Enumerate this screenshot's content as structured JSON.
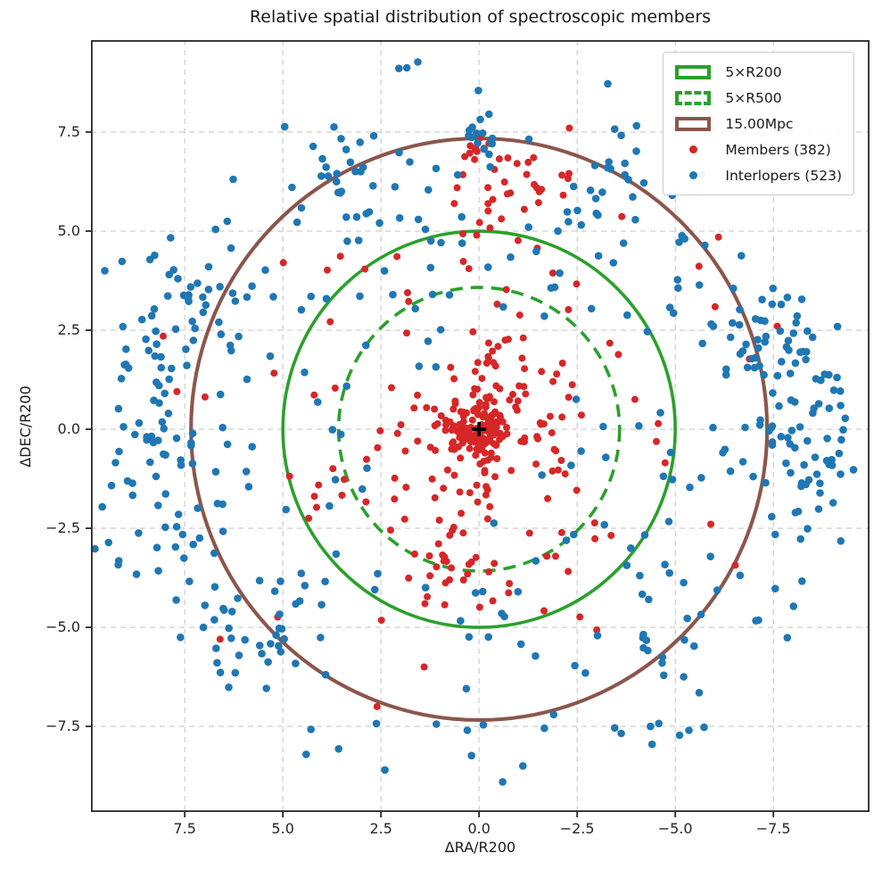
{
  "chart_data": {
    "type": "scatter",
    "title": "Relative spatial distribution of spectroscopic members",
    "xlabel": "ΔRA/R200",
    "ylabel": "ΔDEC/R200",
    "x_axis_inverted": true,
    "xlim": [
      9.89,
      -9.95
    ],
    "ylim": [
      9.82,
      -9.66
    ],
    "xticks": [
      7.5,
      5.0,
      2.5,
      0.0,
      -2.5,
      -5.0,
      -7.5
    ],
    "yticks": [
      7.5,
      5.0,
      2.5,
      0.0,
      -2.5,
      -5.0,
      -7.5
    ],
    "grid": true,
    "grid_color": "#c9c9c9",
    "spine_color": "#262626",
    "background": "#ffffff",
    "center_marker": {
      "x": 0.0,
      "y": 0.0,
      "symbol": "+",
      "color": "#000000"
    },
    "circles": [
      {
        "label": "5×R200",
        "radius": 5.0,
        "color": "#2ca02c",
        "style": "solid"
      },
      {
        "label": "5×R500",
        "radius": 3.58,
        "color": "#2ca02c",
        "style": "dashed"
      },
      {
        "label": "15.00Mpc",
        "radius": 7.34,
        "color": "#8c564b",
        "style": "solid"
      }
    ],
    "seed": 7,
    "series": [
      {
        "name": "Members (382)",
        "count": 382,
        "color": "#d62728",
        "marker_radius": 4.0,
        "clusters": [
          {
            "type": "gauss",
            "cx": 0.0,
            "cy": 0.0,
            "sx": 0.35,
            "sy": 0.3,
            "n": 100
          },
          {
            "type": "gauss",
            "cx": 0.2,
            "cy": 0.1,
            "sx": 1.1,
            "sy": 0.9,
            "n": 80
          },
          {
            "type": "gauss",
            "cx": -0.4,
            "cy": 1.6,
            "sx": 1.0,
            "sy": 0.8,
            "n": 30
          },
          {
            "type": "gauss",
            "cx": 0.6,
            "cy": -1.3,
            "sx": 1.1,
            "sy": 0.8,
            "n": 30
          },
          {
            "type": "ring",
            "rmin": 2.2,
            "rmax": 5.0,
            "n": 60
          },
          {
            "type": "gauss",
            "cx": 0.6,
            "cy": -3.4,
            "sx": 0.7,
            "sy": 0.35,
            "n": 16
          },
          {
            "type": "gauss",
            "cx": -0.5,
            "cy": 5.8,
            "sx": 0.45,
            "sy": 0.85,
            "n": 20
          },
          {
            "type": "gauss",
            "cx": -0.1,
            "cy": 7.05,
            "sx": 0.3,
            "sy": 0.25,
            "n": 10
          },
          {
            "type": "gauss",
            "cx": -2.0,
            "cy": 6.3,
            "sx": 0.5,
            "sy": 0.35,
            "n": 10
          },
          {
            "type": "ring",
            "rmin": 5.2,
            "rmax": 7.4,
            "n": 18
          },
          {
            "type": "pts",
            "pts": [
              [
                8.05,
                2.35
              ],
              [
                7.7,
                0.95
              ],
              [
                6.6,
                -5.3
              ],
              [
                2.6,
                -7.0
              ],
              [
                -6.1,
                4.85
              ],
              [
                -7.6,
                2.6
              ],
              [
                -2.3,
                7.6
              ],
              [
                1.4,
                -6.0
              ]
            ]
          }
        ]
      },
      {
        "name": "Interlopers (523)",
        "count": 523,
        "color": "#1f77b4",
        "marker_radius": 4.3,
        "clusters": [
          {
            "type": "gauss",
            "cx": -8.2,
            "cy": 0.2,
            "sx": 0.75,
            "sy": 1.5,
            "n": 65
          },
          {
            "type": "gauss",
            "cx": -7.1,
            "cy": 2.3,
            "sx": 0.7,
            "sy": 0.7,
            "n": 30
          },
          {
            "type": "gauss",
            "cx": 8.2,
            "cy": -0.6,
            "sx": 0.8,
            "sy": 1.7,
            "n": 50
          },
          {
            "type": "gauss",
            "cx": 7.3,
            "cy": 2.9,
            "sx": 0.9,
            "sy": 0.7,
            "n": 28
          },
          {
            "type": "gauss",
            "cx": 5.9,
            "cy": -5.1,
            "sx": 0.9,
            "sy": 0.8,
            "n": 30
          },
          {
            "type": "gauss",
            "cx": -0.15,
            "cy": 7.3,
            "sx": 0.28,
            "sy": 0.18,
            "n": 13
          },
          {
            "type": "gauss",
            "cx": 3.4,
            "cy": 5.9,
            "sx": 1.1,
            "sy": 0.7,
            "n": 24
          },
          {
            "type": "gauss",
            "cx": -3.4,
            "cy": 5.6,
            "sx": 1.0,
            "sy": 0.8,
            "n": 24
          },
          {
            "type": "ring",
            "rmin": 3.3,
            "rmax": 7.3,
            "n": 110
          },
          {
            "type": "ring",
            "rmin": 7.3,
            "rmax": 9.5,
            "n": 109,
            "ew_bias": true
          },
          {
            "type": "gauss",
            "cx": -5.1,
            "cy": -5.3,
            "sx": 0.7,
            "sy": 0.7,
            "n": 12
          },
          {
            "type": "gauss",
            "cx": 0.2,
            "cy": 4.0,
            "sx": 1.3,
            "sy": 0.9,
            "n": 14
          },
          {
            "type": "ring",
            "rmin": 1.8,
            "rmax": 3.3,
            "n": 10
          },
          {
            "type": "pts",
            "pts": [
              [
                0.3,
                -7.6
              ],
              [
                -1.9,
                -7.2
              ],
              [
                2.4,
                -8.6
              ],
              [
                -0.6,
                -8.9
              ]
            ]
          }
        ]
      }
    ]
  },
  "legend": {
    "items": [
      {
        "label": "5×R200",
        "swatch": "rect",
        "color": "#2ca02c",
        "dashed": false
      },
      {
        "label": "5×R500",
        "swatch": "rect",
        "color": "#2ca02c",
        "dashed": true
      },
      {
        "label": "15.00Mpc",
        "swatch": "rect",
        "color": "#8c564b",
        "dashed": false
      },
      {
        "label": "Members (382)",
        "swatch": "dot",
        "color": "#d62728",
        "dashed": false
      },
      {
        "label": "Interlopers (523)",
        "swatch": "dot",
        "color": "#1f77b4",
        "dashed": false
      }
    ]
  }
}
